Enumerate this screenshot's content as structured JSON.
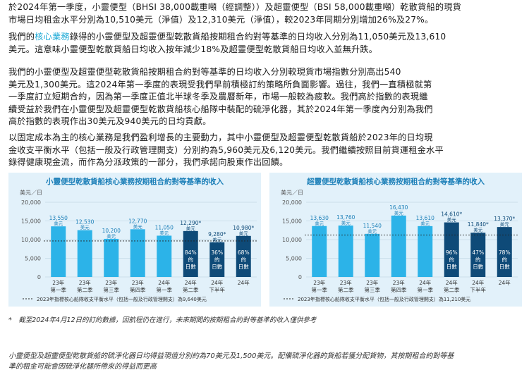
{
  "paragraphs": {
    "p1_line1": "於2024年第一季度，小靈便型（BHSI 38,000載重噸（經調整））及超靈便型（BSI 58,000載重噸）乾散貨船的現貨",
    "p1_line2": "市場日均租金水平分別為10,510美元（淨值）及12,310美元（淨值），較2023年同期分別增加26%及27%。",
    "p2_pre": "我們的",
    "p2_highlight": "核心業務",
    "p2_line1_post": "錄得的小靈便型及超靈便型乾散貨船按期租合約對等基準的日均收入分別為11,050美元及13,610",
    "p2_line2": "美元。這意味小靈便型乾散貨船日均收入按年減少18%及超靈便型乾散貨船日均收入並無升跌。",
    "p3_line1": "我們的小靈便型及超靈便型乾散貨船按期租合約對等基準的日均收入分別較現貨市場指數分別高出540",
    "p3_line2": "美元及1,300美元。這2024年第一季度的表現受我們早前積極訂約策略所負面影響。過往，我們一直積極就第",
    "p3_line3": "一季度訂立短期合約，因為第一季度正值北半球冬季及農曆新年，市場一般較為疲軟。我們高於指數的表現繼",
    "p3_line4": "續受益於我們在小靈便型及超靈便型乾散貨船核心船隊中裝配的硫淨化器，其於2024年第一季度內分別為我們",
    "p3_line5": "高於指數的表現作出30美元及940美元的日均貢獻。",
    "p4_line1": "以固定成本為主的核心業務是我們盈利增長的主要動力，其中小靈便型及超靈便型乾散貨船於2023年的日均現",
    "p4_line2": "金收支平衡水平（包括一般及行政管理開支）分別約為5,960美元及6,120美元。我們繼續按照目前貨運租金水平",
    "p4_line3": "錄得健康現金流，而作為分派政策的一部分，我們承諾向股東作出回饋。"
  },
  "chart_data": [
    {
      "type": "bar",
      "title": "小靈便型乾散貨船核心業務按期租合約對等基準的收入",
      "ylabel": "美元／日",
      "ylim": [
        0,
        20000
      ],
      "yticks": [
        "0",
        "5,000",
        "10,000",
        "15,000",
        "20,000"
      ],
      "categories": [
        [
          "23年",
          "第一季"
        ],
        [
          "23年",
          "第二季"
        ],
        [
          "23年",
          "第三季"
        ],
        [
          "23年",
          "第四季"
        ],
        [
          "24年",
          "第一季"
        ],
        [
          "24年",
          "第二季"
        ],
        [
          "24年",
          "下半年"
        ],
        [
          "24年",
          ""
        ]
      ],
      "values": [
        13550,
        12530,
        10200,
        12770,
        11050,
        12290,
        9280,
        10980
      ],
      "value_labels": [
        "13,550",
        "12,530",
        "10,200",
        "12,770",
        "11,050",
        "12,290",
        "9,280",
        "10,980"
      ],
      "starred": [
        false,
        false,
        false,
        false,
        false,
        true,
        true,
        true
      ],
      "booked": [
        "",
        "",
        "",
        "",
        "",
        "84%的日數",
        "36%的日數",
        "68%的日數"
      ],
      "breakeven": 9640,
      "breakeven_label": "2023年指標核心船隊收支平衡水平（包括一般及行政管理開支）為9,640美元",
      "colors": {
        "past": "#2cb3e8",
        "forward": "#0e4a78"
      }
    },
    {
      "type": "bar",
      "title": "超靈便型乾散貨船核心業務按期租合約對等基準的收入",
      "ylabel": "美元／日",
      "ylim": [
        0,
        20000
      ],
      "yticks": [
        "0",
        "5,000",
        "10,000",
        "15,000",
        "20,000"
      ],
      "categories": [
        [
          "23年",
          "第一季"
        ],
        [
          "23年",
          "第二季"
        ],
        [
          "23年",
          "第三季"
        ],
        [
          "23年",
          "第四季"
        ],
        [
          "24年",
          "第一季"
        ],
        [
          "24年",
          "第二季"
        ],
        [
          "24年",
          "下半年"
        ],
        [
          "24年",
          ""
        ]
      ],
      "values": [
        13630,
        13760,
        11540,
        16430,
        13610,
        14610,
        11840,
        13370
      ],
      "value_labels": [
        "13,630",
        "13,760",
        "11,540",
        "16,430",
        "13,610",
        "14,610",
        "11,840",
        "13,370"
      ],
      "starred": [
        false,
        false,
        false,
        false,
        false,
        true,
        true,
        true
      ],
      "booked": [
        "",
        "",
        "",
        "",
        "",
        "96%的日數",
        "47%的日數",
        "78%的日數"
      ],
      "breakeven": 11210,
      "breakeven_label": "2023年指標核心船隊收支平衡水平（包括一般及行政管理開支）為11,210美元",
      "colors": {
        "past": "#2cb3e8",
        "forward": "#0e4a78"
      }
    }
  ],
  "footnotes": {
    "star_note": "*　截至2024年4月12日的訂約數據，因航程仍在進行，未來期間的按期租合約對等基準的收入僅供參考",
    "note2_line1": "小靈便型及超靈便型乾散貨船的硫淨化器日均得益現值分別約為70美元及1,500美元。配備硫淨化器的貨船若獲分配貨物，其按期租合約對等基",
    "note2_line2": "準的租金可能會因硫淨化器所帶來的得益而更高"
  }
}
